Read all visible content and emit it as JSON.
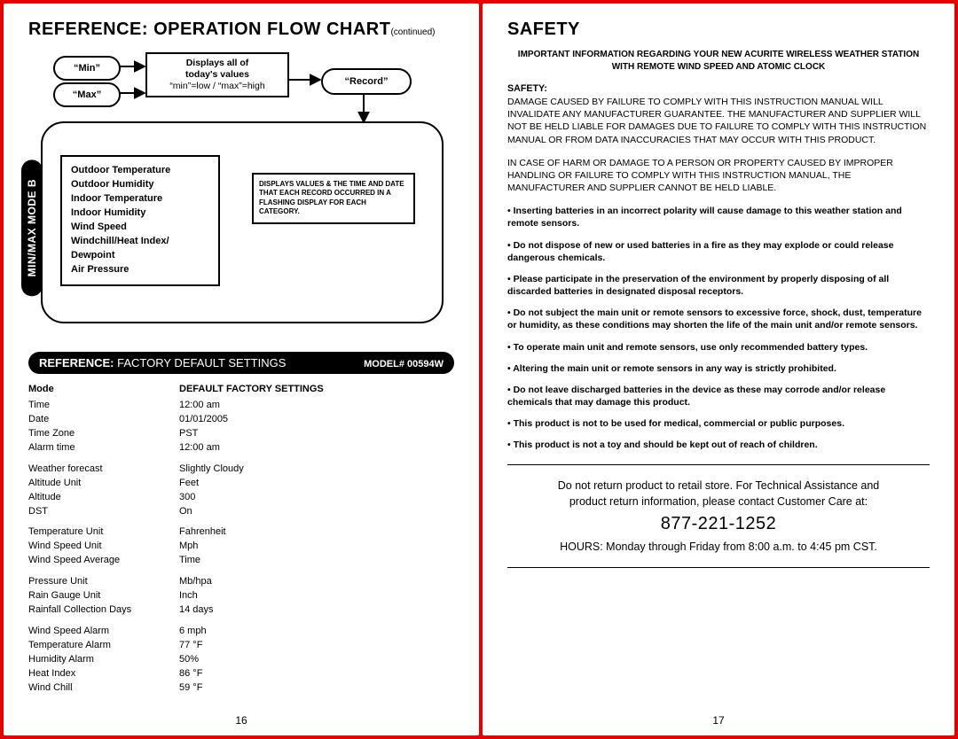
{
  "left": {
    "title": "REFERENCE: OPERATION FLOW CHART",
    "titleCont": "(continued)",
    "modeTab": "MIN/MAX MODE B",
    "ovals": {
      "min": "“Min”",
      "max": "“Max”",
      "record": "“Record”"
    },
    "displayBox": {
      "l1": "Displays all of",
      "l2": "today's values",
      "l3": "“min”=low / “max”=high"
    },
    "listItems": [
      "Outdoor Temperature",
      "Outdoor Humidity",
      "Indoor Temperature",
      "Indoor Humidity",
      "Wind Speed",
      "Windchill/Heat Index/",
      "Dewpoint",
      "Air Pressure"
    ],
    "noteBox": "DISPLAYS VALUES & THE TIME AND DATE THAT EACH RECORD OCCURRED IN A FLASHING DISPLAY FOR EACH CATEGORY.",
    "defaults": {
      "headerBold": "REFERENCE:",
      "headerReg": " FACTORY DEFAULT SETTINGS",
      "model": "MODEL# 00594W",
      "colMode": "Mode",
      "colDefault": "DEFAULT FACTORY SETTINGS",
      "groups": [
        [
          [
            "Time",
            "12:00 am"
          ],
          [
            "Date",
            "01/01/2005"
          ],
          [
            "Time Zone",
            "PST"
          ],
          [
            "Alarm time",
            "12:00 am"
          ]
        ],
        [
          [
            "Weather forecast",
            "Slightly Cloudy"
          ],
          [
            "Altitude Unit",
            "Feet"
          ],
          [
            "Altitude",
            "300"
          ],
          [
            "DST",
            "On"
          ]
        ],
        [
          [
            "Temperature Unit",
            "Fahrenheit"
          ],
          [
            "Wind Speed Unit",
            "Mph"
          ],
          [
            "Wind Speed Average",
            "Time"
          ]
        ],
        [
          [
            "Pressure Unit",
            "Mb/hpa"
          ],
          [
            "Rain Gauge Unit",
            "Inch"
          ],
          [
            "Rainfall Collection Days",
            "14 days"
          ]
        ],
        [
          [
            "Wind Speed Alarm",
            "6 mph"
          ],
          [
            "Temperature Alarm",
            "77 °F"
          ],
          [
            "Humidity Alarm",
            "50%"
          ],
          [
            "Heat Index",
            "86 °F"
          ],
          [
            "Wind Chill",
            "59 °F"
          ]
        ]
      ]
    },
    "pageNum": "16"
  },
  "right": {
    "title": "SAFETY",
    "intro": "IMPORTANT INFORMATION REGARDING YOUR NEW ACURITE WIRELESS WEATHER STATION WITH REMOTE WIND SPEED AND ATOMIC CLOCK",
    "safetyHead": "SAFETY:",
    "p1": "DAMAGE CAUSED BY FAILURE TO COMPLY WITH THIS INSTRUCTION MANUAL WILL INVALIDATE ANY MANUFACTURER GUARANTEE. THE MANUFACTURER AND SUPPLIER WILL NOT BE HELD LIABLE FOR DAMAGES DUE TO FAILURE TO COMPLY WITH THIS INSTRUCTION MANUAL OR FROM DATA INACCURACIES THAT MAY OCCUR WITH THIS PRODUCT.",
    "p2": "IN CASE OF HARM OR DAMAGE TO A PERSON OR PROPERTY CAUSED BY IMPROPER HANDLING OR FAILURE TO COMPLY WITH THIS INSTRUCTION MANUAL, THE MANUFACTURER AND SUPPLIER CANNOT BE HELD LIABLE.",
    "bullets": [
      "Inserting batteries in an incorrect polarity will cause damage to this weather station and remote sensors.",
      "Do not dispose of new or used batteries in a fire as they may explode or could release dangerous chemicals.",
      "Please participate in the preservation of the environment by properly disposing of all discarded batteries in designated disposal receptors.",
      "Do not subject the main unit or remote sensors to excessive force, shock, dust, temperature or humidity, as these conditions may shorten the life of the main unit and/or remote sensors.",
      "To operate main unit and remote sensors, use only recommended battery types.",
      "Altering the main unit or remote sensors in any way is strictly prohibited.",
      "Do not leave discharged batteries in the device as these may corrode and/or release chemicals that may damage this product.",
      "This product is not to be used for medical, commercial or public purposes.",
      "This product is not a toy and should be kept out of reach of children."
    ],
    "contact": {
      "l1": "Do not return product to retail store. For Technical Assistance and",
      "l2": "product return information, please contact Customer Care at:",
      "phone": "877-221-1252",
      "hours": "HOURS: Monday through Friday from 8:00 a.m. to 4:45 pm CST."
    },
    "pageNum": "17"
  }
}
